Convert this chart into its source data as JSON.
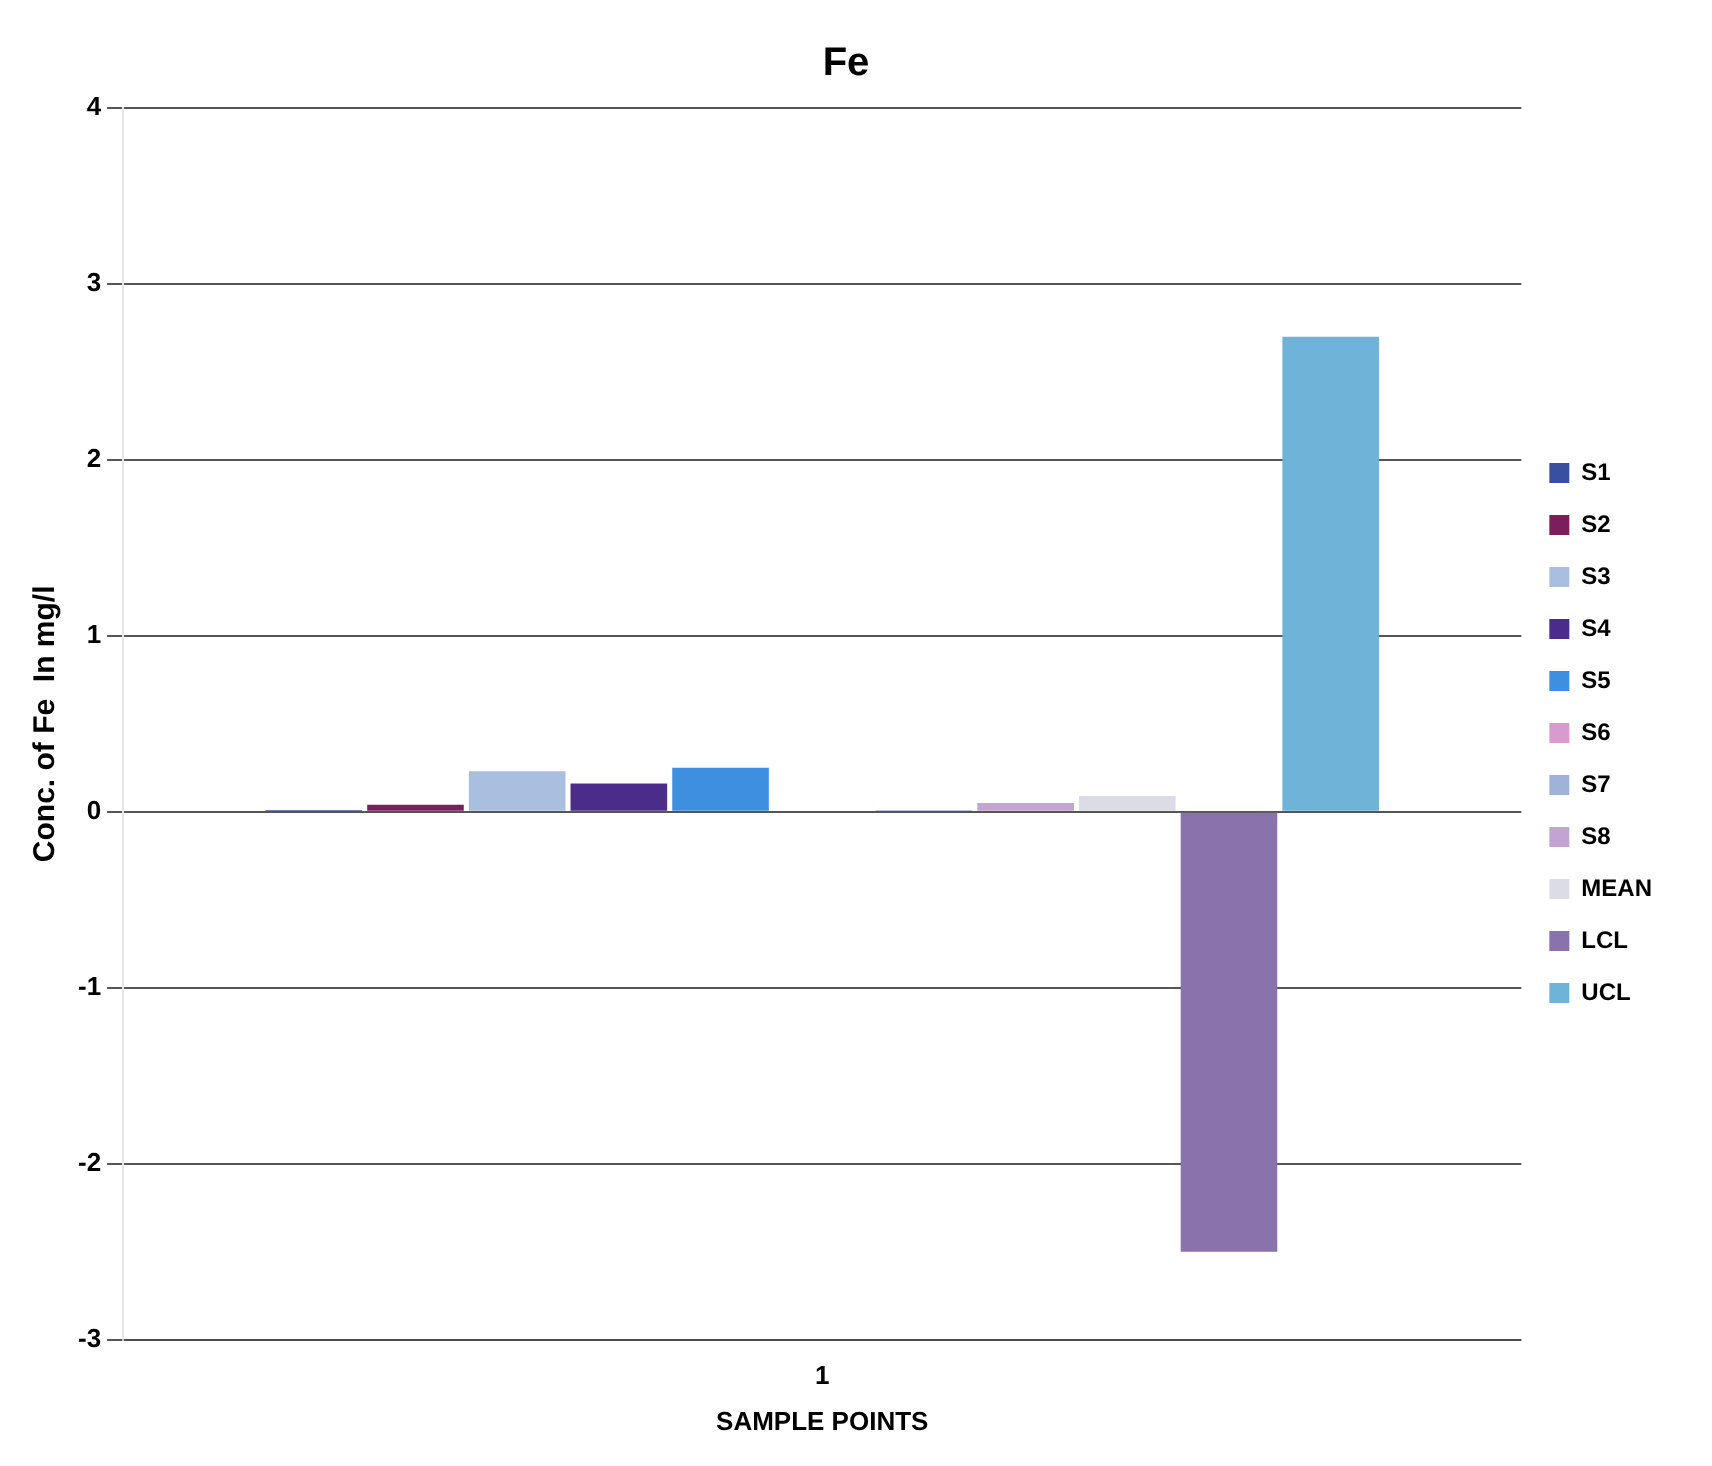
{
  "chart_data": {
    "type": "bar",
    "title": "Fe",
    "xlabel": "SAMPLE POINTS",
    "ylabel": "Conc. of Fe  In mg/l",
    "categories": [
      "1"
    ],
    "ylim": [
      -3,
      4
    ],
    "yticks": [
      -3,
      -2,
      -1,
      0,
      1,
      2,
      3,
      4
    ],
    "grid": "y",
    "legend": "right",
    "series": [
      {
        "name": "S1",
        "color": "#3a4fa0",
        "values": [
          0.01
        ]
      },
      {
        "name": "S2",
        "color": "#7a1f5c",
        "values": [
          0.04
        ]
      },
      {
        "name": "S3",
        "color": "#a8bfe0",
        "values": [
          0.23
        ]
      },
      {
        "name": "S4",
        "color": "#4b2c8a",
        "values": [
          0.16
        ]
      },
      {
        "name": "S5",
        "color": "#3f8fe0",
        "values": [
          0.25
        ]
      },
      {
        "name": "S6",
        "color": "#d99ad0",
        "values": [
          0
        ]
      },
      {
        "name": "S7",
        "color": "#9fb3d8",
        "values": [
          0.01
        ]
      },
      {
        "name": "S8",
        "color": "#c3a3cf",
        "values": [
          0.05
        ]
      },
      {
        "name": "MEAN",
        "color": "#dcdce6",
        "values": [
          0.09
        ]
      },
      {
        "name": "LCL",
        "color": "#8a72ad",
        "values": [
          -2.5
        ]
      },
      {
        "name": "UCL",
        "color": "#6fb3d9",
        "values": [
          2.7
        ]
      }
    ]
  }
}
